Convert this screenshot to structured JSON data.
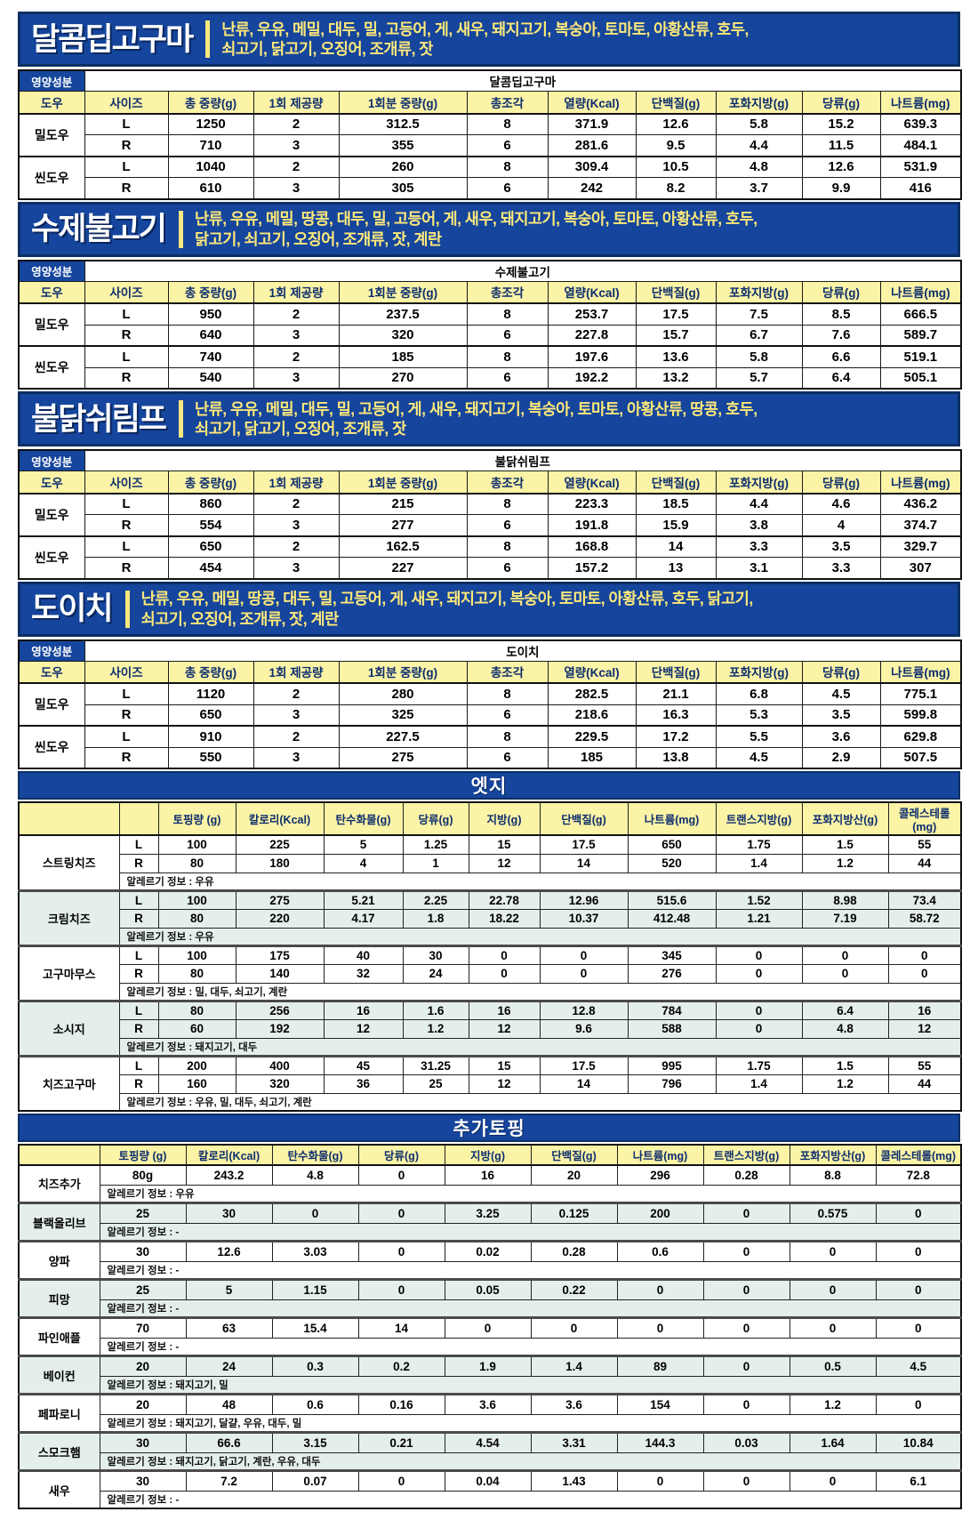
{
  "labels": {
    "nutrition_facts": "영양성분"
  },
  "colors": {
    "banner_blue": "#15459c",
    "banner_border": "#0c2f63",
    "header_yellow": "#fbf3a6",
    "header_text_navy": "#0d2e6e",
    "allergen_text_yellow": "#ffe97a",
    "alt_row_teal": "#e4efeb"
  },
  "product_sections": [
    {
      "title": "달콤딥고구마",
      "allergens": "난류, 우유, 메밀, 대두, 밀, 고등어, 게, 새우, 돼지고기, 복숭아, 토마토, 아황산류, 호두,\n쇠고기, 닭고기, 오징어, 조개류, 잣",
      "product_name": "달콤딥고구마",
      "columns": [
        "도우",
        "사이즈",
        "총 중량(g)",
        "1회 제공량",
        "1회분 중량(g)",
        "총조각",
        "열량(Kcal)",
        "단백질(g)",
        "포화지방(g)",
        "당류(g)",
        "나트륨(mg)"
      ],
      "dough_groups": [
        {
          "dough": "밀도우",
          "rows": [
            {
              "size": "L",
              "values": [
                "1250",
                "2",
                "312.5",
                "8",
                "371.9",
                "12.6",
                "5.8",
                "15.2",
                "639.3"
              ]
            },
            {
              "size": "R",
              "values": [
                "710",
                "3",
                "355",
                "6",
                "281.6",
                "9.5",
                "4.4",
                "11.5",
                "484.1"
              ]
            }
          ]
        },
        {
          "dough": "씬도우",
          "rows": [
            {
              "size": "L",
              "values": [
                "1040",
                "2",
                "260",
                "8",
                "309.4",
                "10.5",
                "4.8",
                "12.6",
                "531.9"
              ]
            },
            {
              "size": "R",
              "values": [
                "610",
                "3",
                "305",
                "6",
                "242",
                "8.2",
                "3.7",
                "9.9",
                "416"
              ]
            }
          ]
        }
      ]
    },
    {
      "title": "수제불고기",
      "allergens": "난류, 우유, 메밀, 땅콩, 대두, 밀, 고등어, 게, 새우, 돼지고기, 복숭아, 토마토, 아황산류, 호두,\n닭고기, 쇠고기, 오징어, 조개류, 잣, 계란",
      "product_name": "수제불고기",
      "columns": [
        "도우",
        "사이즈",
        "총 중량(g)",
        "1회 제공량",
        "1회분 중량(g)",
        "총조각",
        "열량(Kcal)",
        "단백질(g)",
        "포화지방(g)",
        "당류(g)",
        "나트륨(mg)"
      ],
      "dough_groups": [
        {
          "dough": "밀도우",
          "rows": [
            {
              "size": "L",
              "values": [
                "950",
                "2",
                "237.5",
                "8",
                "253.7",
                "17.5",
                "7.5",
                "8.5",
                "666.5"
              ]
            },
            {
              "size": "R",
              "values": [
                "640",
                "3",
                "320",
                "6",
                "227.8",
                "15.7",
                "6.7",
                "7.6",
                "589.7"
              ]
            }
          ]
        },
        {
          "dough": "씬도우",
          "rows": [
            {
              "size": "L",
              "values": [
                "740",
                "2",
                "185",
                "8",
                "197.6",
                "13.6",
                "5.8",
                "6.6",
                "519.1"
              ]
            },
            {
              "size": "R",
              "values": [
                "540",
                "3",
                "270",
                "6",
                "192.2",
                "13.2",
                "5.7",
                "6.4",
                "505.1"
              ]
            }
          ]
        }
      ]
    },
    {
      "title": "불닭쉬림프",
      "allergens": "난류, 우유, 메밀, 대두, 밀, 고등어, 게, 새우, 돼지고기, 복숭아, 토마토, 아황산류, 땅콩, 호두,\n쇠고기, 닭고기, 오징어, 조개류, 잣",
      "product_name": "불닭쉬림프",
      "columns": [
        "도우",
        "사이즈",
        "총 중량(g)",
        "1회 제공량",
        "1회분 중량(g)",
        "총조각",
        "열량(Kcal)",
        "단백질(g)",
        "포화지방(g)",
        "당류(g)",
        "나트륨(mg)"
      ],
      "dough_groups": [
        {
          "dough": "밀도우",
          "rows": [
            {
              "size": "L",
              "values": [
                "860",
                "2",
                "215",
                "8",
                "223.3",
                "18.5",
                "4.4",
                "4.6",
                "436.2"
              ]
            },
            {
              "size": "R",
              "values": [
                "554",
                "3",
                "277",
                "6",
                "191.8",
                "15.9",
                "3.8",
                "4",
                "374.7"
              ]
            }
          ]
        },
        {
          "dough": "씬도우",
          "rows": [
            {
              "size": "L",
              "values": [
                "650",
                "2",
                "162.5",
                "8",
                "168.8",
                "14",
                "3.3",
                "3.5",
                "329.7"
              ]
            },
            {
              "size": "R",
              "values": [
                "454",
                "3",
                "227",
                "6",
                "157.2",
                "13",
                "3.1",
                "3.3",
                "307"
              ]
            }
          ]
        }
      ]
    },
    {
      "title": "도이치",
      "allergens": "난류, 우유, 메밀, 땅콩, 대두, 밀, 고등어, 게, 새우, 돼지고기, 복숭아, 토마토, 아황산류, 호두, 닭고기,\n쇠고기, 오징어, 조개류, 잣, 계란",
      "product_name": "도이치",
      "columns": [
        "도우",
        "사이즈",
        "총 중량(g)",
        "1회 제공량",
        "1회분 중량(g)",
        "총조각",
        "열량(Kcal)",
        "단백질(g)",
        "포화지방(g)",
        "당류(g)",
        "나트륨(mg)"
      ],
      "dough_groups": [
        {
          "dough": "밀도우",
          "rows": [
            {
              "size": "L",
              "values": [
                "1120",
                "2",
                "280",
                "8",
                "282.5",
                "21.1",
                "6.8",
                "4.5",
                "775.1"
              ]
            },
            {
              "size": "R",
              "values": [
                "650",
                "3",
                "325",
                "6",
                "218.6",
                "16.3",
                "5.3",
                "3.5",
                "599.8"
              ]
            }
          ]
        },
        {
          "dough": "씬도우",
          "rows": [
            {
              "size": "L",
              "values": [
                "910",
                "2",
                "227.5",
                "8",
                "229.5",
                "17.2",
                "5.5",
                "3.6",
                "629.8"
              ]
            },
            {
              "size": "R",
              "values": [
                "550",
                "3",
                "275",
                "6",
                "185",
                "13.8",
                "4.5",
                "2.9",
                "507.5"
              ]
            }
          ]
        }
      ]
    }
  ],
  "edge_section": {
    "title": "엣지",
    "columns": [
      "",
      "",
      "토핑량 (g)",
      "칼로리(Kcal)",
      "탄수화물(g)",
      "당류(g)",
      "지방(g)",
      "단백질(g)",
      "나트륨(mg)",
      "트랜스지방(g)",
      "포화지방산(g)",
      "콜레스테롤(mg)"
    ],
    "items": [
      {
        "name": "스트링치즈",
        "shaded": false,
        "rows": [
          {
            "size": "L",
            "values": [
              "100",
              "225",
              "5",
              "1.25",
              "15",
              "17.5",
              "650",
              "1.75",
              "1.5",
              "55"
            ]
          },
          {
            "size": "R",
            "values": [
              "80",
              "180",
              "4",
              "1",
              "12",
              "14",
              "520",
              "1.4",
              "1.2",
              "44"
            ]
          }
        ],
        "allergy": "알레르기 정보 : 우유"
      },
      {
        "name": "크림치즈",
        "shaded": true,
        "rows": [
          {
            "size": "L",
            "values": [
              "100",
              "275",
              "5.21",
              "2.25",
              "22.78",
              "12.96",
              "515.6",
              "1.52",
              "8.98",
              "73.4"
            ]
          },
          {
            "size": "R",
            "values": [
              "80",
              "220",
              "4.17",
              "1.8",
              "18.22",
              "10.37",
              "412.48",
              "1.21",
              "7.19",
              "58.72"
            ]
          }
        ],
        "allergy": "알레르기 정보 : 우유"
      },
      {
        "name": "고구마무스",
        "shaded": false,
        "rows": [
          {
            "size": "L",
            "values": [
              "100",
              "175",
              "40",
              "30",
              "0",
              "0",
              "345",
              "0",
              "0",
              "0"
            ]
          },
          {
            "size": "R",
            "values": [
              "80",
              "140",
              "32",
              "24",
              "0",
              "0",
              "276",
              "0",
              "0",
              "0"
            ]
          }
        ],
        "allergy": "알레르기 정보 : 밀, 대두, 쇠고기, 계란"
      },
      {
        "name": "소시지",
        "shaded": true,
        "rows": [
          {
            "size": "L",
            "values": [
              "80",
              "256",
              "16",
              "1.6",
              "16",
              "12.8",
              "784",
              "0",
              "6.4",
              "16"
            ]
          },
          {
            "size": "R",
            "values": [
              "60",
              "192",
              "12",
              "1.2",
              "12",
              "9.6",
              "588",
              "0",
              "4.8",
              "12"
            ]
          }
        ],
        "allergy": "알레르기 정보 : 돼지고기, 대두"
      },
      {
        "name": "치즈고구마",
        "shaded": false,
        "rows": [
          {
            "size": "L",
            "values": [
              "200",
              "400",
              "45",
              "31.25",
              "15",
              "17.5",
              "995",
              "1.75",
              "1.5",
              "55"
            ]
          },
          {
            "size": "R",
            "values": [
              "160",
              "320",
              "36",
              "25",
              "12",
              "14",
              "796",
              "1.4",
              "1.2",
              "44"
            ]
          }
        ],
        "allergy": "알레르기 정보 : 우유, 밀, 대두, 쇠고기, 계란"
      }
    ]
  },
  "topping_section": {
    "title": "추가토핑",
    "columns": [
      "",
      "토핑량 (g)",
      "칼로리(Kcal)",
      "탄수화물(g)",
      "당류(g)",
      "지방(g)",
      "단백질(g)",
      "나트륨(mg)",
      "트랜스지방(g)",
      "포화지방산(g)",
      "콜레스테롤(mg)"
    ],
    "items": [
      {
        "name": "치즈추가",
        "shaded": false,
        "values": [
          "80g",
          "243.2",
          "4.8",
          "0",
          "16",
          "20",
          "296",
          "0.28",
          "8.8",
          "72.8"
        ],
        "allergy": "알레르기 정보 : 우유"
      },
      {
        "name": "블랙올리브",
        "shaded": true,
        "values": [
          "25",
          "30",
          "0",
          "0",
          "3.25",
          "0.125",
          "200",
          "0",
          "0.575",
          "0"
        ],
        "allergy": "알레르기 정보 : -"
      },
      {
        "name": "양파",
        "shaded": false,
        "values": [
          "30",
          "12.6",
          "3.03",
          "0",
          "0.02",
          "0.28",
          "0.6",
          "0",
          "0",
          "0"
        ],
        "allergy": "알레르기 정보 : -"
      },
      {
        "name": "피망",
        "shaded": true,
        "values": [
          "25",
          "5",
          "1.15",
          "0",
          "0.05",
          "0.22",
          "0",
          "0",
          "0",
          "0"
        ],
        "allergy": "알레르기 정보 : -"
      },
      {
        "name": "파인애플",
        "shaded": false,
        "values": [
          "70",
          "63",
          "15.4",
          "14",
          "0",
          "0",
          "0",
          "0",
          "0",
          "0"
        ],
        "allergy": "알레르기 정보 : -"
      },
      {
        "name": "베이컨",
        "shaded": true,
        "values": [
          "20",
          "24",
          "0.3",
          "0.2",
          "1.9",
          "1.4",
          "89",
          "0",
          "0.5",
          "4.5"
        ],
        "allergy": "알레르기 정보 : 돼지고기, 밀"
      },
      {
        "name": "페파로니",
        "shaded": false,
        "values": [
          "20",
          "48",
          "0.6",
          "0.16",
          "3.6",
          "3.6",
          "154",
          "0",
          "1.2",
          "0"
        ],
        "allergy": "알레르기 정보 : 돼지고기, 달걀, 우유, 대두, 밀"
      },
      {
        "name": "스모크햄",
        "shaded": true,
        "values": [
          "30",
          "66.6",
          "3.15",
          "0.21",
          "4.54",
          "3.31",
          "144.3",
          "0.03",
          "1.64",
          "10.84"
        ],
        "allergy": "알레르기 정보 : 돼지고기, 닭고기, 계란, 우유, 대두"
      },
      {
        "name": "새우",
        "shaded": false,
        "values": [
          "30",
          "7.2",
          "0.07",
          "0",
          "0.04",
          "1.43",
          "0",
          "0",
          "0",
          "6.1"
        ],
        "allergy": "알레르기 정보 : -"
      }
    ]
  }
}
